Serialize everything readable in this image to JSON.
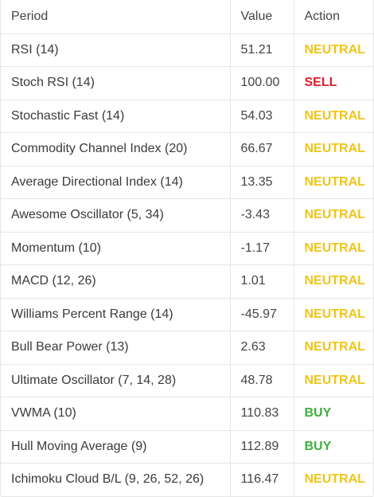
{
  "header": {
    "period": "Period",
    "value": "Value",
    "action": "Action"
  },
  "colors": {
    "neutral": "#f0c419",
    "sell": "#d9202d",
    "buy": "#3fae3f"
  },
  "rows": [
    {
      "period": "RSI (14)",
      "value": "51.21",
      "action": "NEUTRAL"
    },
    {
      "period": "Stoch RSI (14)",
      "value": "100.00",
      "action": "SELL"
    },
    {
      "period": "Stochastic Fast (14)",
      "value": "54.03",
      "action": "NEUTRAL"
    },
    {
      "period": "Commodity Channel Index (20)",
      "value": "66.67",
      "action": "NEUTRAL"
    },
    {
      "period": "Average Directional Index (14)",
      "value": "13.35",
      "action": "NEUTRAL"
    },
    {
      "period": "Awesome Oscillator (5, 34)",
      "value": "-3.43",
      "action": "NEUTRAL"
    },
    {
      "period": "Momentum (10)",
      "value": "-1.17",
      "action": "NEUTRAL"
    },
    {
      "period": "MACD (12, 26)",
      "value": "1.01",
      "action": "NEUTRAL"
    },
    {
      "period": "Williams Percent Range (14)",
      "value": "-45.97",
      "action": "NEUTRAL"
    },
    {
      "period": "Bull Bear Power (13)",
      "value": "2.63",
      "action": "NEUTRAL"
    },
    {
      "period": "Ultimate Oscillator (7, 14, 28)",
      "value": "48.78",
      "action": "NEUTRAL"
    },
    {
      "period": "VWMA (10)",
      "value": "110.83",
      "action": "BUY"
    },
    {
      "period": "Hull Moving Average (9)",
      "value": "112.89",
      "action": "BUY"
    },
    {
      "period": "Ichimoku Cloud B/L (9, 26, 52, 26)",
      "value": "116.47",
      "action": "NEUTRAL"
    }
  ]
}
